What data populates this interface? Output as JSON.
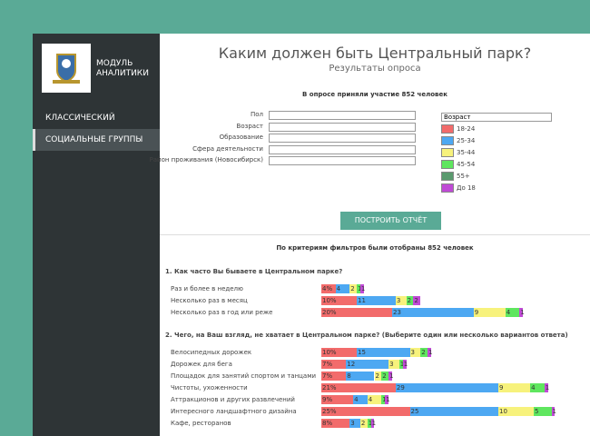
{
  "sidebar": {
    "logo_lines": [
      "МОДУЛЬ",
      "АНАЛИТИКИ"
    ],
    "menu": [
      "КЛАССИЧЕСКИЙ",
      "СОЦИАЛЬНЫЕ ГРУППЫ"
    ]
  },
  "header": {
    "title": "Каким должен быть Центральный парк?",
    "subtitle": "Результаты опроса"
  },
  "form": {
    "participants": "В опросе приняли участие 852 человек",
    "filters": [
      "Пол",
      "Возраст",
      "Образование",
      "Сфера деятельности",
      "Район проживания (Новосибирск)"
    ],
    "group_select": "Возраст",
    "legend": [
      {
        "name": "18-24",
        "color": "#f26b6b"
      },
      {
        "name": "25-34",
        "color": "#4da8f2"
      },
      {
        "name": "35-44",
        "color": "#f7f27c"
      },
      {
        "name": "45-54",
        "color": "#5fe65f"
      },
      {
        "name": "55+",
        "color": "#5a9a6e"
      },
      {
        "name": "До 18",
        "color": "#c04ad6"
      }
    ],
    "button": "ПОСТРОИТЬ ОТЧЁТ"
  },
  "results": {
    "summary": "По критериям фильтров были отобраны 852 человек",
    "segment_colors": [
      "#f26b6b",
      "#4da8f2",
      "#f7f27c",
      "#5fe65f",
      "#c04ad6"
    ],
    "questions": [
      {
        "title": "1. Как часто Вы бываете в Центральном парке?",
        "rows": [
          {
            "label": "Раз и более в неделю",
            "values": [
              4,
              4,
              2,
              1,
              1
            ],
            "value_labels": [
              "4%",
              "4",
              "2",
              "1",
              "1"
            ]
          },
          {
            "label": "Несколько раз в месяц",
            "values": [
              10,
              11,
              3,
              2,
              2
            ],
            "value_labels": [
              "10%",
              "11",
              "3",
              "2",
              "2"
            ]
          },
          {
            "label": "Несколько раз в год или реже",
            "values": [
              20,
              23,
              9,
              4,
              1
            ],
            "value_labels": [
              "20%",
              "23",
              "9",
              "4",
              "1"
            ]
          }
        ]
      },
      {
        "title": "2. Чего, на Ваш взгляд, не хватает в Центральном парке? (Выберите один или несколько вариантов ответа)",
        "rows": [
          {
            "label": "Велосипедных дорожек",
            "values": [
              10,
              15,
              3,
              2,
              1
            ],
            "value_labels": [
              "10%",
              "15",
              "3",
              "2",
              "1"
            ]
          },
          {
            "label": "Дорожек для бега",
            "values": [
              7,
              12,
              3,
              1,
              1
            ],
            "value_labels": [
              "7%",
              "12",
              "3",
              "1",
              "1"
            ]
          },
          {
            "label": "Площадок для занятий спортом и танцами",
            "values": [
              7,
              8,
              2,
              2,
              1
            ],
            "value_labels": [
              "7%",
              "8",
              "2",
              "2",
              "1"
            ]
          },
          {
            "label": "Чистоты, ухоженности",
            "values": [
              21,
              29,
              9,
              4,
              1
            ],
            "value_labels": [
              "21%",
              "29",
              "9",
              "4",
              "1"
            ]
          },
          {
            "label": "Аттракционов и других развлечений",
            "values": [
              9,
              4,
              4,
              1,
              1
            ],
            "value_labels": [
              "9%",
              "4",
              "4",
              "1",
              "1"
            ]
          },
          {
            "label": "Интересного ландшафтного дизайна",
            "values": [
              25,
              25,
              10,
              5,
              1
            ],
            "value_labels": [
              "25%",
              "25",
              "10",
              "5",
              "1"
            ]
          },
          {
            "label": "Кафе, ресторанов",
            "values": [
              8,
              3,
              2,
              1,
              1
            ],
            "value_labels": [
              "8%",
              "3",
              "2",
              "1",
              "1"
            ]
          }
        ]
      }
    ]
  }
}
